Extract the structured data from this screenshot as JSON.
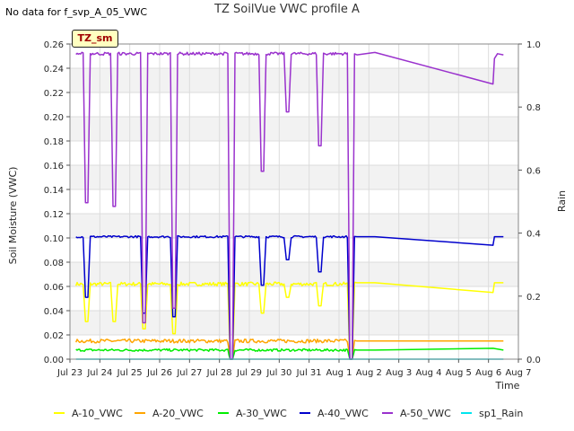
{
  "header": {
    "corner_note": "No data for f_svp_A_05_VWC",
    "title": "TZ SoilVue VWC profile A",
    "badge": "TZ_sm"
  },
  "chart_data": {
    "type": "line",
    "title": "TZ SoilVue VWC profile A",
    "xlabel": "Time",
    "ylabel": "Soil Moisture (VWC)",
    "y2label": "Rain",
    "x_ticks": [
      "Jul 23",
      "Jul 24",
      "Jul 25",
      "Jul 26",
      "Jul 27",
      "Jul 28",
      "Jul 29",
      "Jul 30",
      "Jul 31",
      "Aug 1",
      "Aug 2",
      "Aug 3",
      "Aug 4",
      "Aug 5",
      "Aug 6",
      "Aug 7"
    ],
    "xlim": [
      0,
      15
    ],
    "ylim": [
      0,
      0.26
    ],
    "y_ticks": [
      "0.00",
      "0.02",
      "0.04",
      "0.06",
      "0.08",
      "0.10",
      "0.12",
      "0.14",
      "0.16",
      "0.18",
      "0.20",
      "0.22",
      "0.24",
      "0.26"
    ],
    "y2lim": [
      0,
      1
    ],
    "y2_ticks": [
      "0.0",
      "0.2",
      "0.4",
      "0.6",
      "0.8",
      "1.0"
    ],
    "grid": true,
    "legend_position": "bottom",
    "series": [
      {
        "name": "A-10_VWC",
        "color": "#ffff00",
        "baseline": 0.062,
        "noise": 0.0015,
        "dips": [
          [
            0.55,
            0.031
          ],
          [
            1.5,
            0.031
          ],
          [
            2.5,
            0.025
          ],
          [
            3.5,
            0.021
          ],
          [
            5.4,
            0.0
          ],
          [
            6.45,
            0.038
          ],
          [
            7.3,
            0.051
          ],
          [
            8.35,
            0.044
          ],
          [
            9.4,
            0.0
          ]
        ],
        "tail": [
          [
            9.6,
            0.063
          ],
          [
            10.2,
            0.063
          ],
          [
            14.15,
            0.055
          ],
          [
            14.2,
            0.063
          ],
          [
            14.5,
            0.063
          ]
        ]
      },
      {
        "name": "A-20_VWC",
        "color": "#ffa500",
        "baseline": 0.015,
        "noise": 0.0015,
        "dips": [
          [
            5.4,
            0.0
          ],
          [
            9.4,
            0.0
          ]
        ],
        "tail": [
          [
            9.6,
            0.015
          ],
          [
            10.2,
            0.015
          ],
          [
            14.5,
            0.015
          ]
        ]
      },
      {
        "name": "A-30_VWC",
        "color": "#00ee00",
        "baseline": 0.0075,
        "noise": 0.001,
        "dips": [
          [
            5.4,
            0.0
          ],
          [
            9.4,
            0.0
          ]
        ],
        "tail": [
          [
            9.6,
            0.0075
          ],
          [
            10.2,
            0.0075
          ],
          [
            14.15,
            0.009
          ],
          [
            14.5,
            0.0075
          ]
        ]
      },
      {
        "name": "A-40_VWC",
        "color": "#0000cc",
        "baseline": 0.101,
        "noise": 0.0008,
        "dips": [
          [
            0.55,
            0.051
          ],
          [
            2.5,
            0.038
          ],
          [
            3.5,
            0.035
          ],
          [
            5.4,
            0.0
          ],
          [
            6.45,
            0.061
          ],
          [
            7.3,
            0.082
          ],
          [
            8.35,
            0.072
          ],
          [
            9.4,
            0.0
          ]
        ],
        "tail": [
          [
            9.6,
            0.101
          ],
          [
            10.2,
            0.101
          ],
          [
            14.15,
            0.094
          ],
          [
            14.2,
            0.101
          ],
          [
            14.5,
            0.101
          ]
        ]
      },
      {
        "name": "A-50_VWC",
        "color": "#9a32cd",
        "baseline": 0.252,
        "noise": 0.0012,
        "dips": [
          [
            0.55,
            0.129
          ],
          [
            1.5,
            0.126
          ],
          [
            2.5,
            0.03
          ],
          [
            3.5,
            0.042
          ],
          [
            5.4,
            0.0
          ],
          [
            6.45,
            0.155
          ],
          [
            7.3,
            0.204
          ],
          [
            8.35,
            0.176
          ],
          [
            9.4,
            0.0
          ]
        ],
        "tail": [
          [
            9.6,
            0.251
          ],
          [
            10.2,
            0.253
          ],
          [
            14.15,
            0.227
          ],
          [
            14.2,
            0.248
          ],
          [
            14.3,
            0.252
          ],
          [
            14.5,
            0.251
          ]
        ]
      },
      {
        "name": "sp1_Rain",
        "color": "#00e5ee",
        "baseline": 0.0,
        "noise": 0,
        "axis": "right",
        "dips": [],
        "tail": [
          [
            10.2,
            0.0
          ],
          [
            14.5,
            0.0
          ]
        ]
      }
    ],
    "data_range": [
      0.2,
      14.5
    ]
  }
}
